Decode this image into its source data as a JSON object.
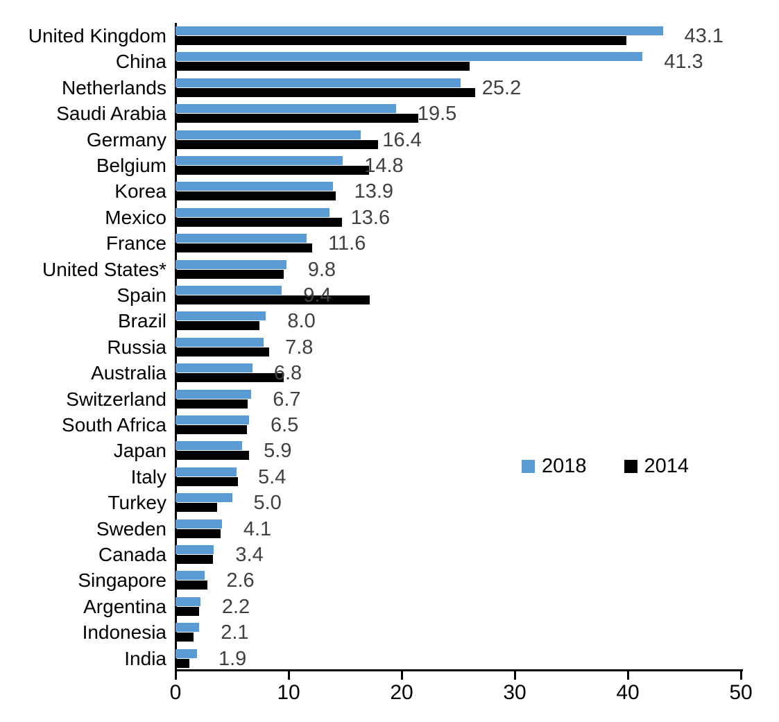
{
  "chart_data": {
    "type": "bar",
    "orientation": "horizontal",
    "title": "",
    "xlabel": "",
    "ylabel": "",
    "xlim": [
      0,
      50
    ],
    "x_ticks": [
      0,
      10,
      20,
      30,
      40,
      50
    ],
    "grid": false,
    "legend_position": "middle-right",
    "categories": [
      "United Kingdom",
      "China",
      "Netherlands",
      "Saudi Arabia",
      "Germany",
      "Belgium",
      "Korea",
      "Mexico",
      "France",
      "United States*",
      "Spain",
      "Brazil",
      "Russia",
      "Australia",
      "Switzerland",
      "South Africa",
      "Japan",
      "Italy",
      "Turkey",
      "Sweden",
      "Canada",
      "Singapore",
      "Argentina",
      "Indonesia",
      "India"
    ],
    "series": [
      {
        "name": "2018",
        "color": "#5B9BD5",
        "data_labels_visible": true,
        "values": [
          43.1,
          41.3,
          25.2,
          19.5,
          16.4,
          14.8,
          13.9,
          13.6,
          11.6,
          9.8,
          9.4,
          8.0,
          7.8,
          6.8,
          6.7,
          6.5,
          5.9,
          5.4,
          5.0,
          4.1,
          3.4,
          2.6,
          2.2,
          2.1,
          1.9
        ]
      },
      {
        "name": "2014",
        "color": "#000000",
        "data_labels_visible": false,
        "values": [
          39.9,
          26.0,
          26.5,
          21.5,
          17.9,
          17.1,
          14.2,
          14.7,
          12.1,
          9.6,
          17.2,
          7.4,
          8.3,
          9.6,
          6.4,
          6.3,
          6.5,
          5.5,
          3.7,
          4.0,
          3.3,
          2.8,
          2.1,
          1.6,
          1.2
        ]
      }
    ],
    "data_label_color": "#404040",
    "axis_color": "#000000"
  }
}
